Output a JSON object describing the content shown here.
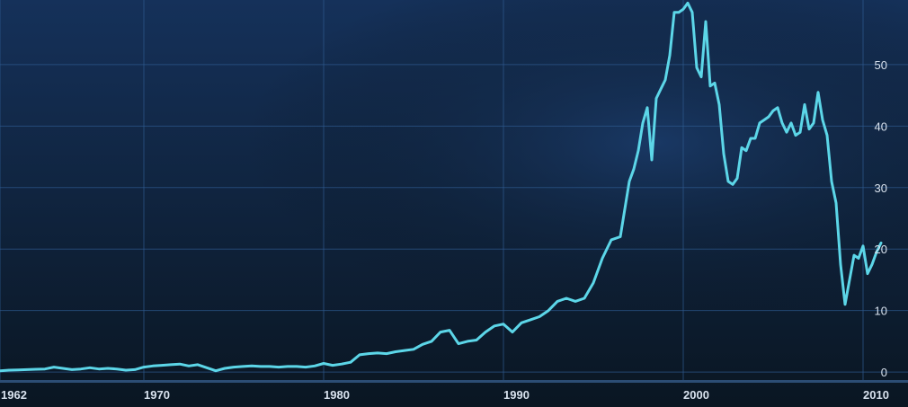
{
  "chart_data": {
    "type": "line",
    "title": "",
    "xlabel": "",
    "ylabel": "",
    "xlim": [
      1962,
      2012.5
    ],
    "ylim": [
      -1.3,
      60.5
    ],
    "x_ticks": [
      1962,
      1970,
      1980,
      1990,
      2000,
      2010
    ],
    "y_ticks": [
      0,
      10,
      20,
      30,
      40,
      50
    ],
    "grid": true,
    "legend": "none",
    "colors": {
      "line": "#5cd6e8",
      "background_top": "#15315a",
      "background_bottom": "#0a1622",
      "grid": "#2e5a8f",
      "baseline": "#2c4d74",
      "tick_text": "#d8e2ee"
    },
    "series": [
      {
        "x": [
          1962,
          1962.5,
          1963,
          1963.5,
          1964,
          1964.5,
          1965,
          1965.5,
          1966,
          1966.5,
          1967,
          1967.5,
          1968,
          1968.5,
          1969,
          1969.5,
          1970,
          1970.5,
          1971,
          1971.5,
          1972,
          1972.5,
          1973,
          1973.5,
          1974,
          1974.5,
          1975,
          1975.5,
          1976,
          1976.5,
          1977,
          1977.5,
          1978,
          1978.5,
          1979,
          1979.5,
          1980,
          1980.5,
          1981,
          1981.5,
          1982,
          1982.5,
          1983,
          1983.5,
          1984,
          1984.5,
          1985,
          1985.5,
          1986,
          1986.5,
          1987,
          1987.5,
          1988,
          1988.5,
          1989,
          1989.5,
          1990,
          1990.5,
          1991,
          1991.5,
          1992,
          1992.5,
          1993,
          1993.5,
          1994,
          1994.5,
          1995,
          1995.5,
          1996,
          1996.5,
          1997,
          1997.25,
          1997.5,
          1997.75,
          1998,
          1998.25,
          1998.5,
          1998.75,
          1999,
          1999.25,
          1999.5,
          1999.75,
          2000,
          2000.25,
          2000.5,
          2000.75,
          2001,
          2001.25,
          2001.5,
          2001.75,
          2002,
          2002.25,
          2002.5,
          2002.75,
          2003,
          2003.25,
          2003.5,
          2003.75,
          2004,
          2004.25,
          2004.5,
          2004.75,
          2005,
          2005.25,
          2005.5,
          2005.75,
          2006,
          2006.25,
          2006.5,
          2006.75,
          2007,
          2007.25,
          2007.5,
          2007.75,
          2008,
          2008.25,
          2008.5,
          2008.75,
          2009,
          2009.25,
          2009.5,
          2009.75,
          2010,
          2010.25,
          2010.5,
          2010.75,
          2011
        ],
        "values": [
          0.2,
          0.3,
          0.35,
          0.4,
          0.45,
          0.5,
          0.8,
          0.6,
          0.4,
          0.5,
          0.7,
          0.5,
          0.6,
          0.5,
          0.3,
          0.4,
          0.8,
          1.0,
          1.1,
          1.2,
          1.3,
          1.0,
          1.2,
          0.7,
          0.2,
          0.6,
          0.8,
          0.9,
          1.0,
          0.9,
          0.9,
          0.8,
          0.9,
          0.9,
          0.8,
          1.0,
          1.4,
          1.1,
          1.3,
          1.6,
          2.8,
          3.0,
          3.1,
          3.0,
          3.3,
          3.5,
          3.7,
          4.5,
          5.0,
          6.5,
          6.8,
          4.6,
          5.0,
          5.2,
          6.5,
          7.5,
          7.8,
          6.5,
          8.0,
          8.5,
          9.0,
          10.0,
          11.5,
          12.0,
          11.5,
          12.0,
          14.5,
          18.5,
          21.5,
          22.0,
          31.0,
          33.0,
          36.0,
          40.5,
          43.0,
          34.5,
          44.5,
          46.0,
          47.5,
          51.5,
          58.5,
          58.5,
          59.0,
          60.0,
          58.5,
          49.5,
          48.0,
          57.0,
          46.5,
          47.0,
          43.5,
          35.5,
          31.0,
          30.5,
          31.5,
          36.5,
          36.0,
          38.0,
          38.0,
          40.5,
          41.0,
          41.5,
          42.5,
          43.0,
          40.5,
          39.0,
          40.5,
          38.5,
          39.0,
          43.5,
          39.5,
          40.5,
          45.5,
          41.0,
          38.5,
          31.0,
          27.5,
          17.5,
          11.0,
          15.0,
          19.0,
          18.5,
          20.5,
          16.0,
          17.5,
          19.5,
          21.0
        ]
      }
    ]
  }
}
